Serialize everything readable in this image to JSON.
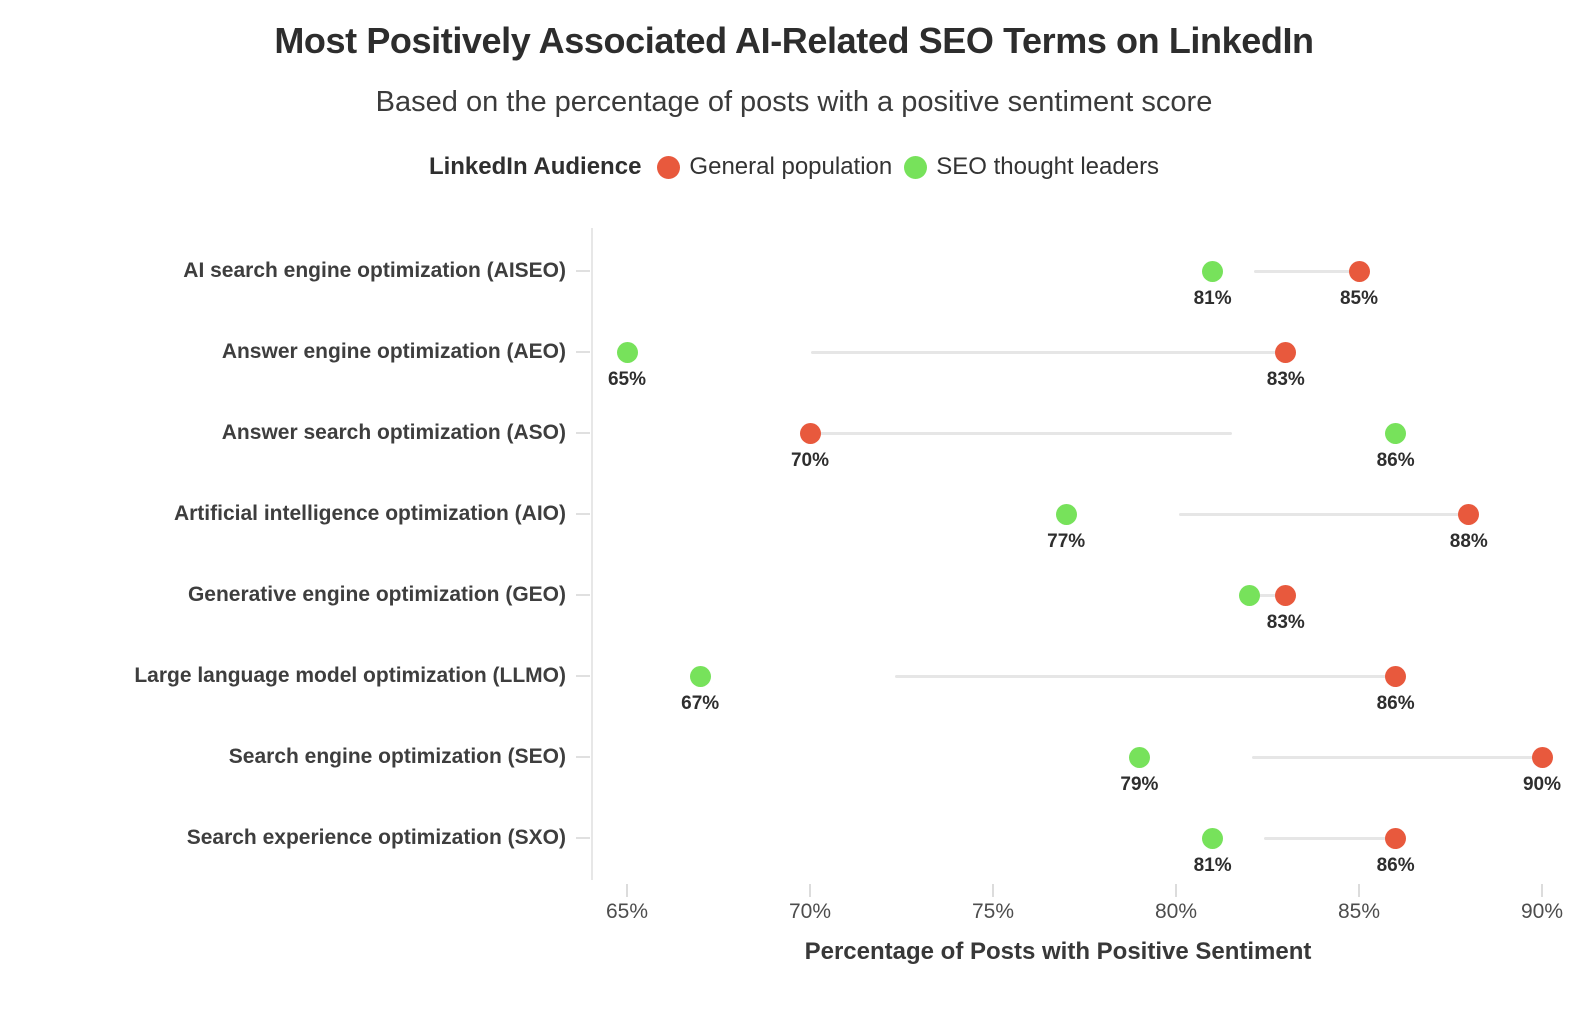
{
  "title": "Most Positively Associated AI-Related SEO Terms on LinkedIn",
  "subtitle": "Based on the percentage of posts with a positive sentiment score",
  "legend": {
    "title": "LinkedIn Audience",
    "entries": [
      {
        "key": "general",
        "label": "General population",
        "color": "#e8593d"
      },
      {
        "key": "leaders",
        "label": "SEO thought leaders",
        "color": "#77e25b"
      }
    ]
  },
  "chart_data": {
    "type": "scatter",
    "subtype": "dumbbell-dot-plot",
    "title": "Most Positively Associated AI-Related SEO Terms on LinkedIn",
    "xlabel": "Percentage of Posts with Positive Sentiment",
    "ylabel": "",
    "x_axis": {
      "ticks": [
        65,
        70,
        75,
        80,
        85,
        90
      ],
      "tick_labels": [
        "65%",
        "70%",
        "75%",
        "80%",
        "85%",
        "90%"
      ],
      "range": [
        64,
        91
      ],
      "grid": false
    },
    "legend_position": "top",
    "series_meta": [
      {
        "key": "general",
        "name": "General population",
        "color": "#e8593d"
      },
      {
        "key": "leaders",
        "name": "SEO thought leaders",
        "color": "#77e25b"
      }
    ],
    "rows": [
      {
        "category": "AI search engine optimization (AISEO)",
        "leaders": 81,
        "general": 85,
        "leaders_label": "81%",
        "general_label": "85%"
      },
      {
        "category": "Answer engine optimization (AEO)",
        "leaders": 65,
        "general": 83,
        "leaders_label": "65%",
        "general_label": "83%"
      },
      {
        "category": "Answer search optimization (ASO)",
        "leaders": 86,
        "general": 70,
        "leaders_label": "86%",
        "general_label": "70%"
      },
      {
        "category": "Artificial intelligence optimization (AIO)",
        "leaders": 77,
        "general": 88,
        "leaders_label": "77%",
        "general_label": "88%"
      },
      {
        "category": "Generative engine optimization (GEO)",
        "leaders": 82,
        "general": 83,
        "leaders_label": "",
        "general_label": "83%"
      },
      {
        "category": "Large language model optimization (LLMO)",
        "leaders": 67,
        "general": 86,
        "leaders_label": "67%",
        "general_label": "86%"
      },
      {
        "category": "Search engine optimization (SEO)",
        "leaders": 79,
        "general": 90,
        "leaders_label": "79%",
        "general_label": "90%"
      },
      {
        "category": "Search experience optimization (SXO)",
        "leaders": 81,
        "general": 86,
        "leaders_label": "81%",
        "general_label": "86%"
      }
    ]
  }
}
